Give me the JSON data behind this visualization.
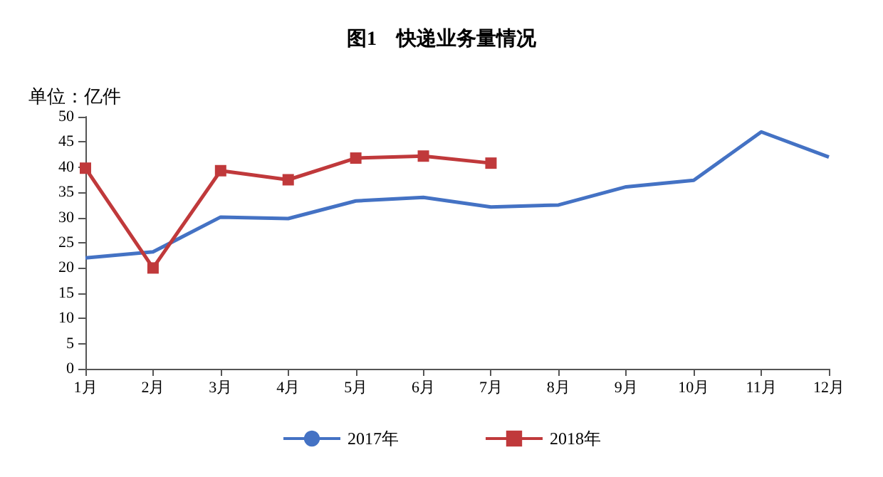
{
  "chart_data": {
    "type": "line",
    "title": "图1　快递业务量情况",
    "ylabel": "单位：亿件",
    "categories": [
      "1月",
      "2月",
      "3月",
      "4月",
      "5月",
      "6月",
      "7月",
      "8月",
      "9月",
      "10月",
      "11月",
      "12月"
    ],
    "series": [
      {
        "name": "2017年",
        "color": "#4472c4",
        "marker": "none",
        "values": [
          22,
          23.2,
          30.1,
          29.8,
          33.3,
          34,
          32.1,
          32.5,
          36.1,
          37.4,
          47,
          42
        ]
      },
      {
        "name": "2018年",
        "color": "#c0393b",
        "marker": "square",
        "values": [
          39.8,
          20,
          39.3,
          37.5,
          41.8,
          42.2,
          40.8,
          null,
          null,
          null,
          null,
          null
        ]
      }
    ],
    "ylim": [
      0,
      50
    ],
    "yticks": [
      0,
      5,
      10,
      15,
      20,
      25,
      30,
      35,
      40,
      45,
      50
    ],
    "grid": false,
    "legend": "bottom"
  }
}
